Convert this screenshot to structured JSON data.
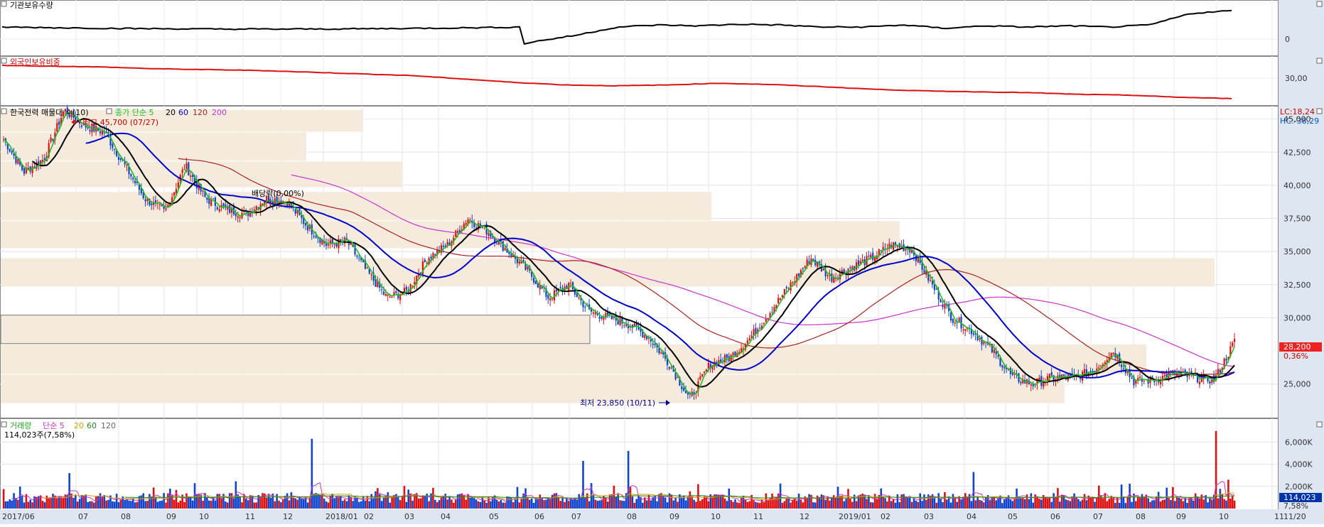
{
  "panels": {
    "institution": {
      "title": "기관보유수량",
      "axis_labels": [
        "0"
      ]
    },
    "foreign": {
      "title": "외국인보유비중",
      "axis_labels": [
        "30,00"
      ]
    },
    "price": {
      "title": "한국전력 매물대 수(10)",
      "ma_title": "종가 단순 5",
      "ma_periods": [
        "20",
        "60",
        "120",
        "200"
      ],
      "lc_label": "LC:18,24",
      "hc_label": "HC:-38,29",
      "last_price": "28,200",
      "last_change": "0,36%",
      "high_label": "최고 45,700 (07/27)",
      "low_label": "최저 23,850 (10/11)",
      "dividend_label": "배당락(0,00%)",
      "y_ticks": [
        "45,000",
        "42,500",
        "40,000",
        "37,500",
        "35,000",
        "32,500",
        "30,000",
        "25,000"
      ]
    },
    "volume": {
      "title": "거래량",
      "ma_title": "단순 5",
      "ma_periods": [
        "20",
        "60",
        "120"
      ],
      "last_info": "114,023주(7,58%)",
      "last_value": "114,023",
      "last_pct": "7,58%",
      "y_ticks": [
        "6,000K",
        "4,000K",
        "2,000K"
      ]
    }
  },
  "x_axis": {
    "labels": [
      "2017/06",
      "07",
      "08",
      "09",
      "10",
      "11",
      "12",
      "2018/01",
      "02",
      "03",
      "04",
      "05",
      "06",
      "07",
      "08",
      "09",
      "10",
      "11",
      "12",
      "2019/01",
      "02",
      "03",
      "04",
      "05",
      "06",
      "07",
      "08",
      "09",
      "10",
      "11"
    ],
    "right_label": "11/20"
  },
  "colors": {
    "ma5": "#22bb22",
    "ma20": "#000000",
    "ma60": "#0000cc",
    "ma120": "#aa2222",
    "ma200": "#cc33cc",
    "up": "#dd1111",
    "down": "#1144cc",
    "profile": "#f5ebdc",
    "axis_bg": "#dde6f1"
  },
  "chart_data": {
    "type": "candlestick",
    "series": [
      {
        "name": "종가 단순 5",
        "values": []
      },
      {
        "name": "20",
        "values": []
      },
      {
        "name": "60",
        "values": []
      },
      {
        "name": "120",
        "values": []
      },
      {
        "name": "200",
        "values": []
      }
    ],
    "close_keypoints": [
      [
        "2017/06",
        43500
      ],
      [
        "2017/06",
        41000
      ],
      [
        "2017/07",
        42000
      ],
      [
        "2017/07",
        45700
      ],
      [
        "2017/08",
        44500
      ],
      [
        "2017/08",
        44000
      ],
      [
        "2017/09",
        41500
      ],
      [
        "2017/09",
        39000
      ],
      [
        "2017/10",
        38000
      ],
      [
        "2017/10",
        41500
      ],
      [
        "2017/10",
        39000
      ],
      [
        "2017/11",
        38200
      ],
      [
        "2017/12",
        37800
      ],
      [
        "2017/12",
        39000
      ],
      [
        "2018/01",
        38800
      ],
      [
        "2018/01",
        37000
      ],
      [
        "2018/02",
        35500
      ],
      [
        "2018/02",
        35800
      ],
      [
        "2018/03",
        33500
      ],
      [
        "2018/03",
        31500
      ],
      [
        "2018/04",
        32000
      ],
      [
        "2018/04",
        34500
      ],
      [
        "2018/05",
        35500
      ],
      [
        "2018/05",
        37500
      ],
      [
        "2018/05",
        36500
      ],
      [
        "2018/06",
        35000
      ],
      [
        "2018/06",
        33500
      ],
      [
        "2018/07",
        31500
      ],
      [
        "2018/07",
        32500
      ],
      [
        "2018/08",
        30500
      ],
      [
        "2018/08",
        30000
      ],
      [
        "2018/09",
        29500
      ],
      [
        "2018/09",
        28500
      ],
      [
        "2018/10",
        26500
      ],
      [
        "2018/10",
        23850
      ],
      [
        "2018/10",
        26500
      ],
      [
        "2018/11",
        27000
      ],
      [
        "2018/11",
        28500
      ],
      [
        "2018/12",
        30500
      ],
      [
        "2018/12",
        32500
      ],
      [
        "2019/01",
        34500
      ],
      [
        "2019/01",
        33000
      ],
      [
        "2019/02",
        33800
      ],
      [
        "2019/02",
        34500
      ],
      [
        "2019/03",
        35500
      ],
      [
        "2019/03",
        35200
      ],
      [
        "2019/03",
        32500
      ],
      [
        "2019/04",
        30000
      ],
      [
        "2019/04",
        29000
      ],
      [
        "2019/05",
        27500
      ],
      [
        "2019/05",
        25500
      ],
      [
        "2019/06",
        25000
      ],
      [
        "2019/06",
        25500
      ],
      [
        "2019/07",
        25500
      ],
      [
        "2019/07",
        26000
      ],
      [
        "2019/08",
        27500
      ],
      [
        "2019/08",
        25200
      ],
      [
        "2019/09",
        25300
      ],
      [
        "2019/09",
        25800
      ],
      [
        "2019/10",
        25500
      ],
      [
        "2019/10",
        25300
      ],
      [
        "2019/11",
        28200
      ]
    ],
    "y_range": [
      23000,
      46000
    ],
    "volume_peaks": [
      [
        "2017/10",
        6300
      ],
      [
        "2018/04",
        4300
      ],
      [
        "2018/04",
        5200
      ],
      [
        "2019/04",
        3300
      ],
      [
        "2019/11",
        7000
      ]
    ],
    "volume_range": [
      0,
      7500
    ]
  }
}
